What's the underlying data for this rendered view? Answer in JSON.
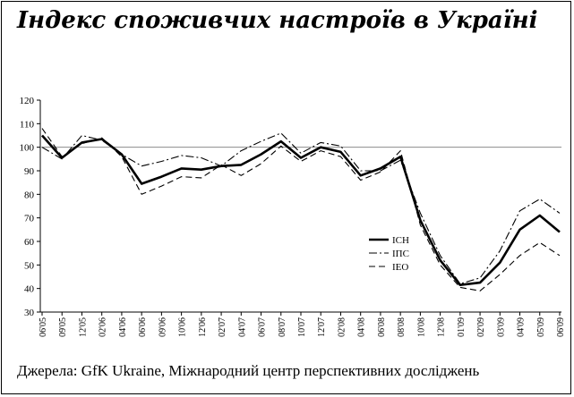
{
  "title": "Індекс споживчих настроїв в Україні",
  "source": "Джерела: GfK Ukraine, Міжнародний центр перспективних досліджень",
  "chart_data": {
    "type": "line",
    "title": "Індекс споживчих настроїв в Україні",
    "xlabel": "",
    "ylabel": "",
    "ylim": [
      30,
      120
    ],
    "yticks": [
      30,
      40,
      50,
      60,
      70,
      80,
      90,
      100,
      110,
      120
    ],
    "reference_line": 100,
    "grid": false,
    "legend": "right",
    "x": [
      "06'05",
      "09'05",
      "12'05",
      "02'06",
      "04'06",
      "06'06",
      "09'06",
      "10'06",
      "12'06",
      "02'07",
      "04'07",
      "06'07",
      "08'07",
      "10'07",
      "12'07",
      "02'08",
      "04'08",
      "06'08",
      "08'08",
      "10'08",
      "12'08",
      "01'09",
      "02'09",
      "03'09",
      "04'09",
      "05'09",
      "06'09"
    ],
    "series": [
      {
        "name": "ICH",
        "style": "solid-thick",
        "values": [
          105,
          95.5,
          102,
          103.5,
          97,
          84.5,
          87.5,
          91,
          90.5,
          92,
          92.5,
          97,
          102.5,
          95.5,
          100,
          98,
          88,
          91,
          96,
          69,
          52,
          41.5,
          42.5,
          51,
          65,
          71,
          64
        ]
      },
      {
        "name": "ІПС",
        "style": "dash-dot",
        "values": [
          100,
          95,
          105,
          103,
          97,
          92,
          94,
          96.5,
          95.5,
          92,
          98.5,
          102.5,
          106,
          97.5,
          102,
          100.5,
          90,
          90,
          94.5,
          72,
          54,
          42,
          44.5,
          56,
          73,
          78,
          72
        ]
      },
      {
        "name": "IEO",
        "style": "dashed",
        "values": [
          108,
          96,
          101.5,
          104,
          96,
          80,
          83.5,
          87.5,
          87,
          92.5,
          88,
          93,
          100.5,
          94,
          98.5,
          96,
          86,
          89.5,
          98.5,
          67,
          50,
          40.5,
          39,
          46,
          54,
          59.5,
          54
        ]
      }
    ]
  }
}
